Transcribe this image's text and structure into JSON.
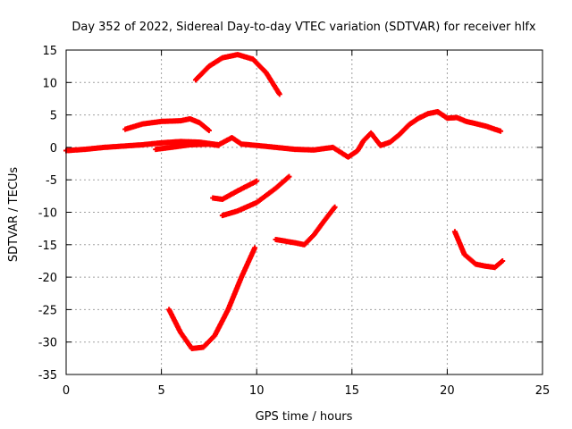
{
  "chart_data": {
    "type": "scatter",
    "title": "Day 352 of 2022, Sidereal Day-to-day VTEC variation (SDTVAR) for receiver hlfx",
    "xlabel": "GPS time / hours",
    "ylabel": "SDTVAR / TECUs",
    "xlim": [
      0,
      25
    ],
    "ylim": [
      -35,
      15
    ],
    "xticks": [
      0,
      5,
      10,
      15,
      20,
      25
    ],
    "yticks": [
      -35,
      -30,
      -25,
      -20,
      -15,
      -10,
      -5,
      0,
      5,
      10,
      15
    ],
    "grid": true,
    "marker_color": "#ff0000",
    "series": [
      {
        "name": "main-band",
        "points": [
          [
            0,
            -0.5
          ],
          [
            1,
            -0.3
          ],
          [
            2,
            0
          ],
          [
            3,
            0.2
          ],
          [
            4,
            0.4
          ],
          [
            5,
            0.7
          ],
          [
            6,
            0.9
          ],
          [
            7,
            0.8
          ],
          [
            8,
            0.4
          ],
          [
            8.7,
            1.5
          ],
          [
            9.2,
            0.5
          ],
          [
            10,
            0.3
          ],
          [
            11,
            0
          ],
          [
            12,
            -0.3
          ],
          [
            13,
            -0.4
          ],
          [
            14,
            0
          ],
          [
            14.8,
            -1.5
          ],
          [
            15.3,
            -0.5
          ],
          [
            15.6,
            1
          ],
          [
            16,
            2.2
          ],
          [
            16.5,
            0.3
          ],
          [
            17,
            0.8
          ],
          [
            17.5,
            2
          ],
          [
            18,
            3.5
          ],
          [
            18.5,
            4.5
          ],
          [
            19,
            5.2
          ],
          [
            19.5,
            5.5
          ],
          [
            20,
            4.5
          ],
          [
            20.5,
            4.6
          ],
          [
            21,
            4
          ],
          [
            22,
            3.3
          ],
          [
            22.8,
            2.5
          ]
        ]
      },
      {
        "name": "arc-near-zero",
        "points": [
          [
            4.7,
            -0.3
          ],
          [
            5.5,
            0
          ],
          [
            6.5,
            0.4
          ],
          [
            7.5,
            0.5
          ],
          [
            8,
            0.3
          ]
        ]
      },
      {
        "name": "upper-arc-4",
        "points": [
          [
            3.1,
            2.8
          ],
          [
            4,
            3.6
          ],
          [
            5,
            4
          ],
          [
            6,
            4.1
          ],
          [
            6.5,
            4.4
          ],
          [
            7,
            3.8
          ],
          [
            7.5,
            2.6
          ]
        ]
      },
      {
        "name": "top-arc-13",
        "points": [
          [
            6.8,
            10.4
          ],
          [
            7.5,
            12.5
          ],
          [
            8.2,
            13.8
          ],
          [
            9,
            14.3
          ],
          [
            9.8,
            13.6
          ],
          [
            10.5,
            11.5
          ],
          [
            11.2,
            8.2
          ]
        ]
      },
      {
        "name": "dip-arc",
        "points": [
          [
            5.4,
            -25
          ],
          [
            6,
            -28.5
          ],
          [
            6.6,
            -31
          ],
          [
            7.2,
            -30.8
          ],
          [
            7.8,
            -29
          ],
          [
            8.5,
            -25
          ],
          [
            9.2,
            -20
          ],
          [
            9.9,
            -15.5
          ]
        ]
      },
      {
        "name": "arc-minus-6",
        "points": [
          [
            7.7,
            -7.8
          ],
          [
            8.2,
            -8
          ],
          [
            9,
            -6.7
          ],
          [
            10,
            -5.2
          ]
        ]
      },
      {
        "name": "arc-minus-8",
        "points": [
          [
            8.2,
            -10.5
          ],
          [
            9,
            -9.8
          ],
          [
            10,
            -8.5
          ],
          [
            11,
            -6.3
          ],
          [
            11.7,
            -4.5
          ]
        ]
      },
      {
        "name": "arc-minus-14",
        "points": [
          [
            11,
            -14.2
          ],
          [
            12,
            -14.7
          ],
          [
            12.5,
            -15
          ],
          [
            13,
            -13.5
          ],
          [
            13.5,
            -11.5
          ],
          [
            14.1,
            -9.2
          ]
        ]
      },
      {
        "name": "arc-minus-17",
        "points": [
          [
            20.4,
            -13
          ],
          [
            20.9,
            -16.5
          ],
          [
            21.5,
            -18
          ],
          [
            22,
            -18.3
          ],
          [
            22.5,
            -18.5
          ],
          [
            22.9,
            -17.5
          ]
        ]
      }
    ]
  }
}
